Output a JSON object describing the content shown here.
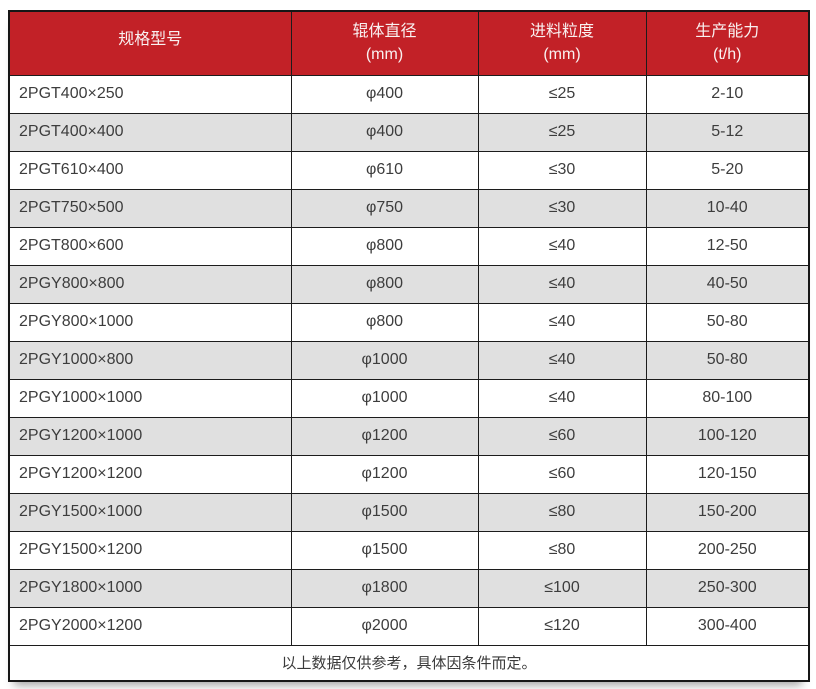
{
  "table": {
    "columns": [
      {
        "label": "规格型号",
        "unit": ""
      },
      {
        "label": "辊体直径",
        "unit": "(mm)"
      },
      {
        "label": "进料粒度",
        "unit": "(mm)"
      },
      {
        "label": "生产能力",
        "unit": "(t/h)"
      }
    ],
    "rows": [
      [
        "2PGT400×250",
        "φ400",
        "≤25",
        "2-10"
      ],
      [
        "2PGT400×400",
        "φ400",
        "≤25",
        "5-12"
      ],
      [
        "2PGT610×400",
        "φ610",
        "≤30",
        "5-20"
      ],
      [
        "2PGT750×500",
        "φ750",
        "≤30",
        "10-40"
      ],
      [
        "2PGT800×600",
        "φ800",
        "≤40",
        "12-50"
      ],
      [
        "2PGY800×800",
        "φ800",
        "≤40",
        "40-50"
      ],
      [
        "2PGY800×1000",
        "φ800",
        "≤40",
        "50-80"
      ],
      [
        "2PGY1000×800",
        "φ1000",
        "≤40",
        "50-80"
      ],
      [
        "2PGY1000×1000",
        "φ1000",
        "≤40",
        "80-100"
      ],
      [
        "2PGY1200×1000",
        "φ1200",
        "≤60",
        "100-120"
      ],
      [
        "2PGY1200×1200",
        "φ1200",
        "≤60",
        "120-150"
      ],
      [
        "2PGY1500×1000",
        "φ1500",
        "≤80",
        "150-200"
      ],
      [
        "2PGY1500×1200",
        "φ1500",
        "≤80",
        "200-250"
      ],
      [
        "2PGY1800×1000",
        "φ1800",
        "≤100",
        "250-300"
      ],
      [
        "2PGY2000×1200",
        "φ2000",
        "≤120",
        "300-400"
      ]
    ],
    "footnote": "以上数据仅供参考，具体因条件而定。"
  },
  "colors": {
    "header_bg": "#c22127",
    "header_text": "#f9f1f1",
    "row_bg": "#ffffff",
    "row_alt_bg": "#e0e0e0",
    "border": "#1c1c1c",
    "body_text": "#3d3d3d"
  }
}
